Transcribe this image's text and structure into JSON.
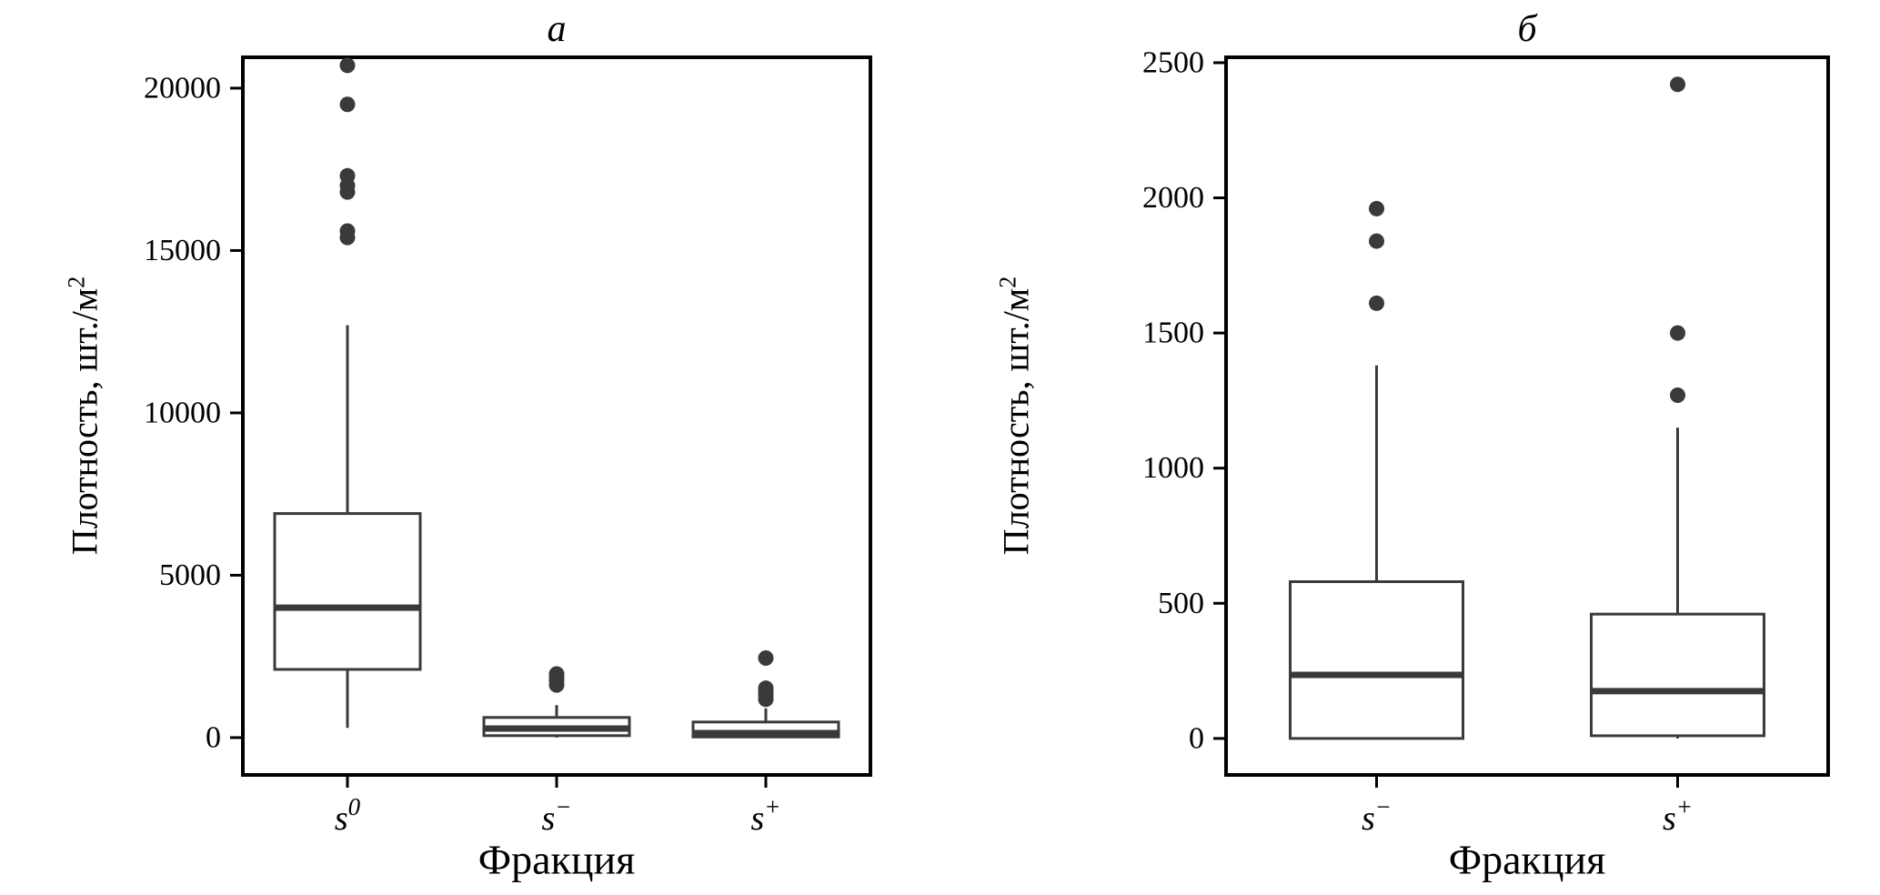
{
  "figure": {
    "background": "#ffffff",
    "stroke_color": "#3a3a3a",
    "frame_color": "#000000",
    "text_color": "#000000"
  },
  "chart_data": [
    {
      "type": "boxplot",
      "panel_label": "а",
      "xlabel": "Фракция",
      "ylabel": "Плотность, шт./м²",
      "ylabel_base": "Плотность, шт./м",
      "ylabel_sup": "2",
      "grid": false,
      "legend": "none",
      "ylim": [
        -1150,
        20950
      ],
      "yticks": [
        0,
        5000,
        10000,
        15000,
        20000
      ],
      "categories": [
        {
          "base": "s",
          "sup": "0"
        },
        {
          "base": "s",
          "sup": "−"
        },
        {
          "base": "s",
          "sup": "+"
        }
      ],
      "boxes": [
        {
          "q1": 2100,
          "median": 4000,
          "q3": 6900,
          "whisker_low": 300,
          "whisker_high": 12700,
          "outliers": [
            15400,
            15600,
            16800,
            17000,
            17300,
            19500,
            20700
          ]
        },
        {
          "q1": 60,
          "median": 280,
          "q3": 620,
          "whisker_low": 0,
          "whisker_high": 1000,
          "outliers": [
            1620,
            1750,
            1850,
            1960
          ]
        },
        {
          "q1": 20,
          "median": 140,
          "q3": 480,
          "whisker_low": 0,
          "whisker_high": 900,
          "outliers": [
            1180,
            1300,
            1420,
            1520,
            2450
          ]
        }
      ]
    },
    {
      "type": "boxplot",
      "panel_label": "б",
      "xlabel": "Фракция",
      "ylabel": "Плотность, шт./м²",
      "ylabel_base": "Плотность, шт./м",
      "ylabel_sup": "2",
      "grid": false,
      "legend": "none",
      "ylim": [
        -135,
        2520
      ],
      "yticks": [
        0,
        500,
        1000,
        1500,
        2000,
        2500
      ],
      "categories": [
        {
          "base": "s",
          "sup": "−"
        },
        {
          "base": "s",
          "sup": "+"
        }
      ],
      "boxes": [
        {
          "q1": 0,
          "median": 235,
          "q3": 580,
          "whisker_low": 0,
          "whisker_high": 1380,
          "outliers": [
            1610,
            1840,
            1960
          ]
        },
        {
          "q1": 10,
          "median": 175,
          "q3": 460,
          "whisker_low": 0,
          "whisker_high": 1150,
          "outliers": [
            1270,
            1500,
            2420
          ]
        }
      ]
    }
  ]
}
